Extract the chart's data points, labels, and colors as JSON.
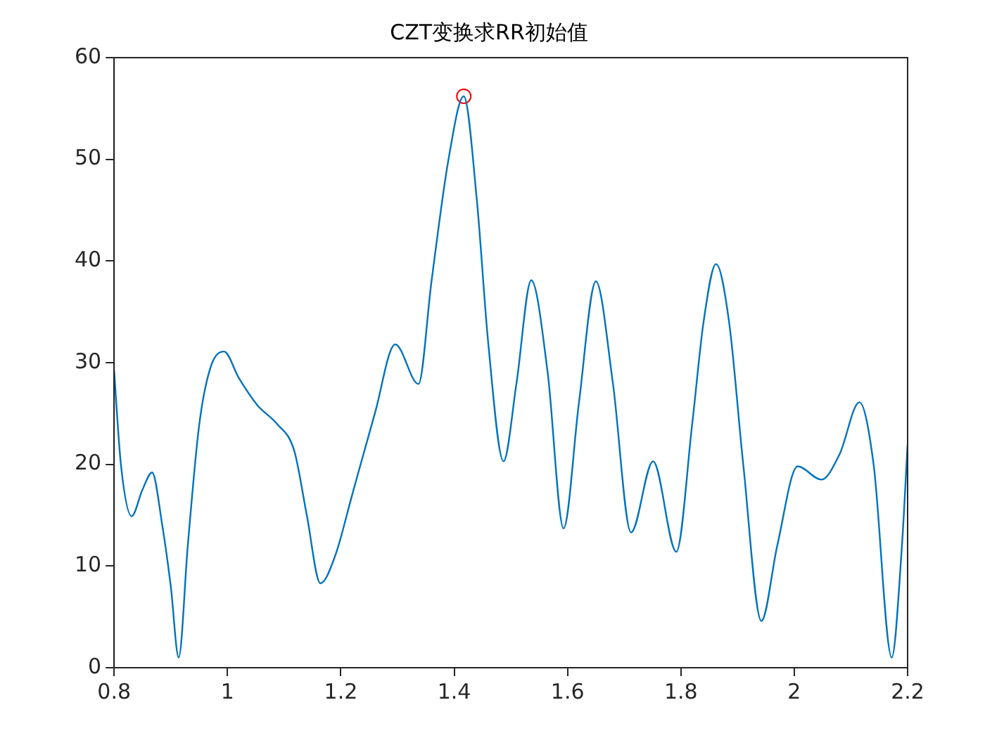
{
  "chart_data": {
    "type": "line",
    "title": "CZT变换求RR初始值",
    "xlim": [
      0.8,
      2.2
    ],
    "xticks": [
      0.8,
      1,
      1.2,
      1.4,
      1.6,
      1.8,
      2,
      2.2
    ],
    "ylim": [
      0,
      60
    ],
    "yticks": [
      0,
      10,
      20,
      30,
      40,
      50,
      60
    ],
    "series": [
      {
        "type": "line",
        "color": "#0072bd",
        "marker": "none",
        "x": [
          0.8,
          0.812,
          0.831,
          0.85,
          0.867,
          0.885,
          0.9,
          0.914,
          0.93,
          0.95,
          0.97,
          0.994,
          1.02,
          1.053,
          1.087,
          1.118,
          1.14,
          1.164,
          1.19,
          1.22,
          1.26,
          1.296,
          1.337,
          1.36,
          1.39,
          1.417,
          1.44,
          1.46,
          1.487,
          1.51,
          1.536,
          1.565,
          1.593,
          1.62,
          1.65,
          1.68,
          1.712,
          1.751,
          1.792,
          1.82,
          1.84,
          1.862,
          1.885,
          1.91,
          1.942,
          1.97,
          2.006,
          2.048,
          2.08,
          2.115,
          2.14,
          2.172,
          2.19,
          2.2
        ],
        "values": [
          29.2,
          20,
          14.9,
          17.5,
          19.2,
          14,
          8,
          1,
          12,
          23.8,
          29.5,
          31.1,
          28.5,
          25.8,
          24,
          21.3,
          15,
          8.3,
          11,
          17,
          25,
          31.8,
          27.9,
          38,
          50,
          56.2,
          46,
          32,
          20.3,
          28,
          38.1,
          29,
          13.7,
          26,
          38,
          28,
          13.3,
          20.3,
          11.4,
          24,
          34,
          39.7,
          34,
          20,
          4.6,
          12,
          19.8,
          18.5,
          21,
          26.1,
          20,
          1,
          12,
          22
        ]
      },
      {
        "type": "scatter",
        "color": "#ff0000",
        "marker": "circle",
        "x": [
          1.417
        ],
        "values": [
          56.2
        ]
      }
    ]
  }
}
